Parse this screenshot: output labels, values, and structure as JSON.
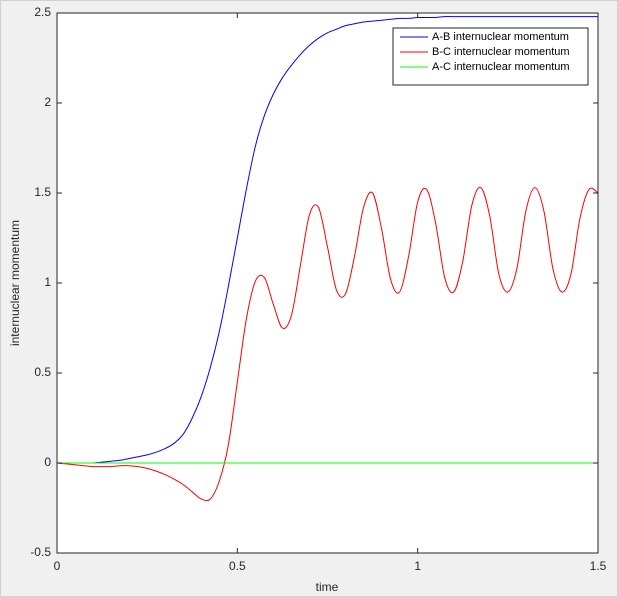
{
  "chart_data": {
    "type": "line",
    "xlabel": "time",
    "ylabel": "internuclear momentum",
    "x": [
      0,
      0.025,
      0.05,
      0.075,
      0.1,
      0.125,
      0.15,
      0.175,
      0.2,
      0.225,
      0.25,
      0.275,
      0.3,
      0.325,
      0.35,
      0.375,
      0.4,
      0.425,
      0.45,
      0.475,
      0.5,
      0.525,
      0.55,
      0.575,
      0.6,
      0.625,
      0.65,
      0.675,
      0.7,
      0.725,
      0.75,
      0.775,
      0.8,
      0.825,
      0.85,
      0.875,
      0.9,
      0.925,
      0.95,
      0.975,
      1,
      1.025,
      1.05,
      1.075,
      1.1,
      1.125,
      1.15,
      1.175,
      1.2,
      1.225,
      1.25,
      1.275,
      1.3,
      1.325,
      1.35,
      1.375,
      1.4,
      1.425,
      1.45,
      1.475,
      1.5
    ],
    "series": [
      {
        "name": "A-B internuclear momentum",
        "color": "#0000ff",
        "values": [
          0,
          0,
          0,
          0,
          0,
          0.005,
          0.01,
          0.015,
          0.025,
          0.035,
          0.045,
          0.06,
          0.08,
          0.11,
          0.16,
          0.25,
          0.37,
          0.53,
          0.73,
          0.98,
          1.25,
          1.52,
          1.76,
          1.93,
          2.05,
          2.14,
          2.21,
          2.27,
          2.32,
          2.36,
          2.39,
          2.41,
          2.43,
          2.44,
          2.45,
          2.455,
          2.46,
          2.465,
          2.47,
          2.47,
          2.475,
          2.475,
          2.475,
          2.48,
          2.48,
          2.48,
          2.48,
          2.48,
          2.48,
          2.48,
          2.48,
          2.48,
          2.48,
          2.48,
          2.48,
          2.48,
          2.48,
          2.48,
          2.48,
          2.48,
          2.48
        ]
      },
      {
        "name": "B-C internuclear momentum",
        "color": "#ff0000",
        "values": [
          0,
          -0.005,
          -0.01,
          -0.015,
          -0.02,
          -0.02,
          -0.02,
          -0.015,
          -0.015,
          -0.02,
          -0.03,
          -0.045,
          -0.065,
          -0.09,
          -0.12,
          -0.16,
          -0.2,
          -0.2,
          -0.1,
          0.1,
          0.45,
          0.8,
          1.01,
          1.03,
          0.88,
          0.75,
          0.82,
          1.1,
          1.38,
          1.42,
          1.2,
          0.96,
          0.94,
          1.15,
          1.42,
          1.5,
          1.3,
          1.02,
          0.95,
          1.15,
          1.45,
          1.52,
          1.33,
          1.03,
          0.95,
          1.12,
          1.43,
          1.53,
          1.37,
          1.05,
          0.95,
          1.08,
          1.4,
          1.53,
          1.4,
          1.08,
          0.95,
          1.05,
          1.36,
          1.52,
          1.5
        ]
      },
      {
        "name": "A-C internuclear momentum",
        "color": "#00ff00",
        "values": [
          0,
          0,
          0,
          0,
          0,
          0,
          0,
          0,
          0,
          0,
          0,
          0,
          0,
          0,
          0,
          0,
          0,
          0,
          0,
          0,
          0,
          0,
          0,
          0,
          0,
          0,
          0,
          0,
          0,
          0,
          0,
          0,
          0,
          0,
          0,
          0,
          0,
          0,
          0,
          0,
          0,
          0,
          0,
          0,
          0,
          0,
          0,
          0,
          0,
          0,
          0,
          0,
          0,
          0,
          0,
          0,
          0,
          0,
          0,
          0,
          0
        ]
      }
    ],
    "xlim": [
      0,
      1.5
    ],
    "xticks": [
      0,
      0.5,
      1,
      1.5
    ],
    "ylim": [
      -0.5,
      2.5
    ],
    "yticks": [
      -0.5,
      0,
      0.5,
      1,
      1.5,
      2,
      2.5
    ],
    "grid": false,
    "legend": "northeast"
  }
}
